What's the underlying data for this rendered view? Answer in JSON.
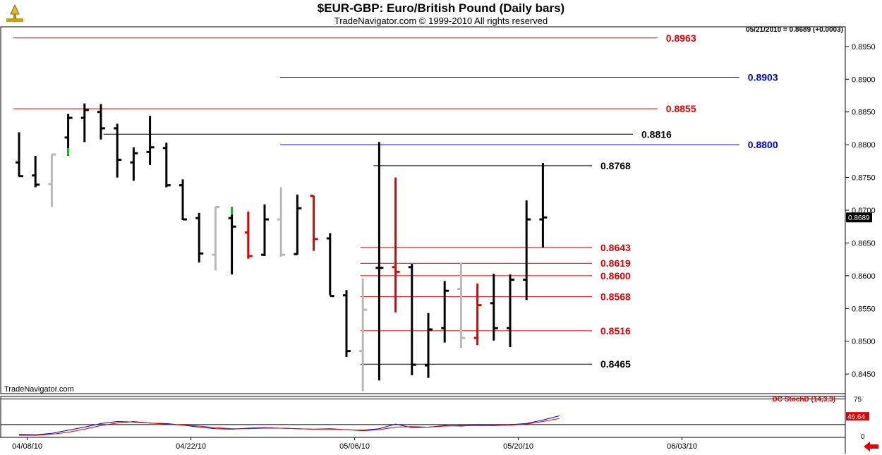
{
  "header": {
    "title": "$EUR-GBP:  Euro/British Pound  (Daily bars)",
    "subtitle": "TradeNavigator.com © 1999-2010 All rights reserved",
    "last_quote": "05/21/2010 = 0.8689 (+0.0003)",
    "watermark": "TradeNavigator.com"
  },
  "colors": {
    "up_bar": "#000000",
    "down_bar_gray": "#b8b8b8",
    "red": "#e00000",
    "blue": "#0000cc",
    "green": "#00cc00",
    "grid": "#d0d0d0"
  },
  "chart_data": [
    {
      "type": "bar",
      "subtype": "ohlc",
      "title": "$EUR-GBP:  Euro/British Pound  (Daily bars)",
      "y_range": [
        0.842,
        0.898
      ],
      "y_ticks": [
        0.845,
        0.85,
        0.855,
        0.86,
        0.865,
        0.87,
        0.875,
        0.88,
        0.885,
        0.89,
        0.895
      ],
      "y_tick_labels": [
        "0.8450",
        "0.8500",
        "0.8550",
        "0.8600",
        "0.8650",
        "0.8700",
        "0.8750",
        "0.8800",
        "0.8850",
        "0.8900",
        "0.8950"
      ],
      "x_tick_labels": [
        {
          "label": "04/08/10",
          "index": 0.5
        },
        {
          "label": "04/22/10",
          "index": 10.5
        },
        {
          "label": "05/06/10",
          "index": 20.5
        },
        {
          "label": "05/20/10",
          "index": 30.5
        },
        {
          "label": "06/03/10",
          "index": 40.5
        }
      ],
      "bars": [
        {
          "o": 0.8773,
          "h": 0.8819,
          "l": 0.8751,
          "c": 0.8752,
          "color": "black"
        },
        {
          "o": 0.8753,
          "h": 0.8783,
          "l": 0.8735,
          "c": 0.8739,
          "color": "black"
        },
        {
          "o": 0.874,
          "h": 0.8785,
          "l": 0.8705,
          "c": 0.8785,
          "color": "gray"
        },
        {
          "o": 0.8811,
          "h": 0.8847,
          "l": 0.8783,
          "c": 0.8841,
          "color": "black",
          "green_low": true
        },
        {
          "o": 0.8841,
          "h": 0.8863,
          "l": 0.8804,
          "c": 0.8853,
          "color": "black"
        },
        {
          "o": 0.885,
          "h": 0.8862,
          "l": 0.8808,
          "c": 0.8825,
          "color": "black"
        },
        {
          "o": 0.8825,
          "h": 0.8832,
          "l": 0.875,
          "c": 0.8777,
          "color": "black"
        },
        {
          "o": 0.8773,
          "h": 0.8796,
          "l": 0.8745,
          "c": 0.8787,
          "color": "black"
        },
        {
          "o": 0.8789,
          "h": 0.8844,
          "l": 0.8769,
          "c": 0.8796,
          "color": "black"
        },
        {
          "o": 0.8795,
          "h": 0.8803,
          "l": 0.8735,
          "c": 0.8738,
          "color": "black"
        },
        {
          "o": 0.8738,
          "h": 0.8747,
          "l": 0.8685,
          "c": 0.8686,
          "color": "black"
        },
        {
          "o": 0.8688,
          "h": 0.8696,
          "l": 0.862,
          "c": 0.8634,
          "color": "black"
        },
        {
          "o": 0.8632,
          "h": 0.8705,
          "l": 0.8608,
          "c": 0.8705,
          "color": "gray"
        },
        {
          "o": 0.8688,
          "h": 0.8705,
          "l": 0.8602,
          "c": 0.8675,
          "color": "black",
          "green_high": true
        },
        {
          "o": 0.8666,
          "h": 0.8698,
          "l": 0.8626,
          "c": 0.863,
          "color": "red"
        },
        {
          "o": 0.8632,
          "h": 0.8709,
          "l": 0.863,
          "c": 0.8686,
          "color": "black"
        },
        {
          "o": 0.8686,
          "h": 0.8735,
          "l": 0.8629,
          "c": 0.8632,
          "color": "gray"
        },
        {
          "o": 0.8633,
          "h": 0.8724,
          "l": 0.8632,
          "c": 0.8703,
          "color": "black"
        },
        {
          "o": 0.8722,
          "h": 0.8722,
          "l": 0.8638,
          "c": 0.8656,
          "color": "red"
        },
        {
          "o": 0.8657,
          "h": 0.8665,
          "l": 0.857,
          "c": 0.8569,
          "color": "black"
        },
        {
          "o": 0.857,
          "h": 0.8578,
          "l": 0.8476,
          "c": 0.8485,
          "color": "black"
        },
        {
          "o": 0.8485,
          "h": 0.8596,
          "l": 0.8424,
          "c": 0.8548,
          "color": "gray"
        },
        {
          "o": 0.8612,
          "h": 0.8804,
          "l": 0.844,
          "c": 0.8612,
          "color": "black"
        },
        {
          "o": 0.8613,
          "h": 0.875,
          "l": 0.8544,
          "c": 0.8606,
          "color": "red"
        },
        {
          "o": 0.8613,
          "h": 0.8618,
          "l": 0.8448,
          "c": 0.8464,
          "color": "black"
        },
        {
          "o": 0.8463,
          "h": 0.8543,
          "l": 0.8444,
          "c": 0.8518,
          "color": "black"
        },
        {
          "o": 0.852,
          "h": 0.8592,
          "l": 0.8498,
          "c": 0.8577,
          "color": "black"
        },
        {
          "o": 0.858,
          "h": 0.862,
          "l": 0.849,
          "c": 0.8505,
          "color": "gray"
        },
        {
          "o": 0.8505,
          "h": 0.8588,
          "l": 0.8494,
          "c": 0.8555,
          "color": "red"
        },
        {
          "o": 0.8558,
          "h": 0.8603,
          "l": 0.8501,
          "c": 0.852,
          "color": "black"
        },
        {
          "o": 0.852,
          "h": 0.8602,
          "l": 0.8491,
          "c": 0.8594,
          "color": "black"
        },
        {
          "o": 0.8594,
          "h": 0.8715,
          "l": 0.8563,
          "c": 0.8686,
          "color": "black"
        },
        {
          "o": 0.8686,
          "h": 0.8772,
          "l": 0.8643,
          "c": 0.8689,
          "color": "black"
        }
      ],
      "levels": [
        {
          "value": 0.8963,
          "label": "0.8963",
          "color": "red",
          "from": 0,
          "to": 39
        },
        {
          "value": 0.8903,
          "label": "0.8903",
          "color": "blue",
          "from": 16.3,
          "to": 44
        },
        {
          "value": 0.8855,
          "label": "0.8855",
          "color": "red",
          "from": 0,
          "to": 39
        },
        {
          "value": 0.8816,
          "label": "0.8816",
          "color": "black",
          "from": 5.5,
          "to": 37.5
        },
        {
          "value": 0.88,
          "label": "0.8800",
          "color": "blue",
          "from": 16.3,
          "to": 44
        },
        {
          "value": 0.8768,
          "label": "0.8768",
          "color": "black",
          "from": 22,
          "to": 35
        },
        {
          "value": 0.8643,
          "label": "0.8643",
          "color": "red",
          "from": 21.2,
          "to": 35
        },
        {
          "value": 0.8619,
          "label": "0.8619",
          "color": "red",
          "from": 21.2,
          "to": 35
        },
        {
          "value": 0.86,
          "label": "0.8600",
          "color": "red",
          "from": 21.2,
          "to": 35
        },
        {
          "value": 0.8568,
          "label": "0.8568",
          "color": "red",
          "from": 21.2,
          "to": 35
        },
        {
          "value": 0.8516,
          "label": "0.8516",
          "color": "red",
          "from": 21.2,
          "to": 35
        },
        {
          "value": 0.8465,
          "label": "0.8465",
          "color": "black",
          "from": 21.2,
          "to": 35
        }
      ],
      "last_price": "0.8689"
    },
    {
      "type": "line",
      "title": "DC StochD (14,3,3)",
      "y_range": [
        0,
        80
      ],
      "y_tick_labels": [
        "75",
        "0"
      ],
      "value_labels": [
        "46.64"
      ],
      "series": [
        {
          "color": "blue",
          "values": [
            6,
            5,
            8,
            14,
            20,
            27,
            31,
            30,
            28,
            27,
            24,
            20,
            17,
            16,
            18,
            19,
            18,
            17,
            16,
            17,
            15,
            14,
            17,
            26,
            19,
            20,
            23,
            22,
            24,
            23,
            25,
            27,
            34,
            42
          ]
        },
        {
          "color": "red",
          "values": [
            4,
            4,
            6,
            10,
            16,
            23,
            28,
            31,
            28,
            26,
            24,
            22,
            19,
            17,
            17,
            18,
            18,
            17,
            16,
            16,
            15,
            13,
            15,
            20,
            21,
            20,
            22,
            23,
            23,
            23,
            24,
            26,
            31,
            37
          ]
        }
      ]
    }
  ]
}
